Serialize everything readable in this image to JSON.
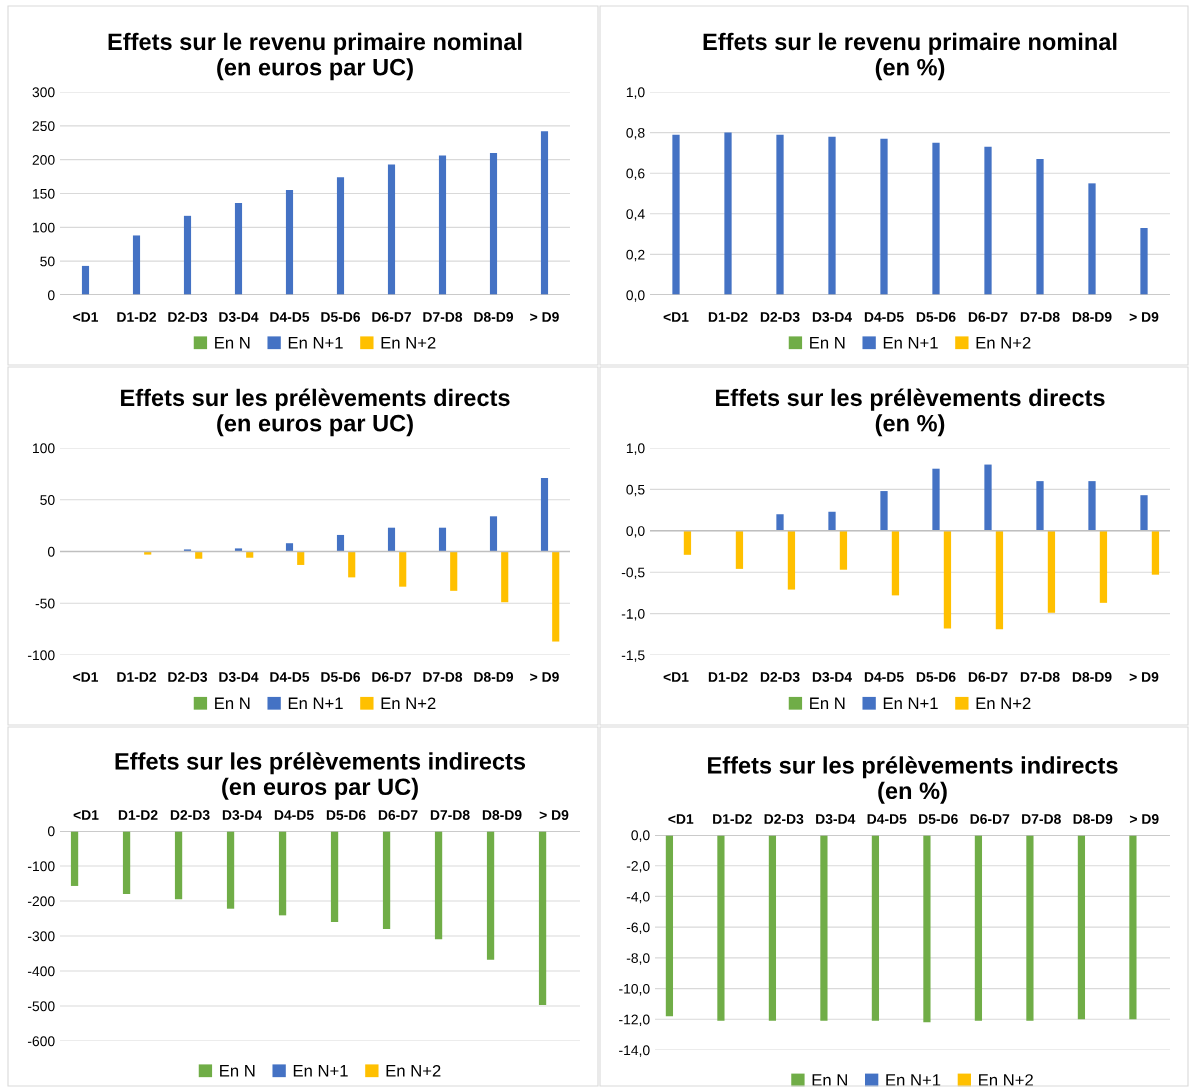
{
  "chart_data": [
    {
      "type": "bar",
      "title": "Effets sur le revenu primaire nominal\n(en euros par UC)",
      "categories": [
        "<D1",
        "D1-D2",
        "D2-D3",
        "D3-D4",
        "D4-D5",
        "D5-D6",
        "D6-D7",
        "D7-D8",
        "D8-D9",
        "> D9"
      ],
      "series": [
        {
          "name": "En N",
          "color": "#70ad47",
          "values": [
            null,
            null,
            null,
            null,
            null,
            null,
            null,
            null,
            null,
            null
          ]
        },
        {
          "name": "En N+1",
          "color": "#4472c4",
          "values": [
            43,
            88,
            117,
            136,
            155,
            174,
            193,
            206,
            210,
            242
          ]
        },
        {
          "name": "En N+2",
          "color": "#ffc000",
          "values": [
            null,
            null,
            null,
            null,
            null,
            null,
            null,
            null,
            null,
            null
          ]
        }
      ],
      "ylim": [
        0,
        300
      ],
      "yticks": [
        0,
        50,
        100,
        150,
        200,
        250,
        300
      ],
      "grid": "y",
      "legend": "bottom"
    },
    {
      "type": "bar",
      "title": "Effets sur le revenu primaire nominal\n(en %)",
      "categories": [
        "<D1",
        "D1-D2",
        "D2-D3",
        "D3-D4",
        "D4-D5",
        "D5-D6",
        "D6-D7",
        "D7-D8",
        "D8-D9",
        "> D9"
      ],
      "series": [
        {
          "name": "En N",
          "color": "#70ad47",
          "values": [
            null,
            null,
            null,
            null,
            null,
            null,
            null,
            null,
            null,
            null
          ]
        },
        {
          "name": "En N+1",
          "color": "#4472c4",
          "values": [
            0.79,
            0.8,
            0.79,
            0.78,
            0.77,
            0.75,
            0.73,
            0.67,
            0.55,
            0.33
          ]
        },
        {
          "name": "En N+2",
          "color": "#ffc000",
          "values": [
            null,
            null,
            null,
            null,
            null,
            null,
            null,
            null,
            null,
            null
          ]
        }
      ],
      "ylim": [
        0,
        1.0
      ],
      "yticks": [
        {
          "value": 0,
          "label": "0,0"
        },
        {
          "value": 0.2,
          "label": "0,2"
        },
        {
          "value": 0.4,
          "label": "0,4"
        },
        {
          "value": 0.6,
          "label": "0,6"
        },
        {
          "value": 0.8,
          "label": "0,8"
        },
        {
          "value": 1.0,
          "label": "1,0"
        }
      ],
      "grid": "y",
      "legend": "bottom"
    },
    {
      "type": "bar",
      "title": "Effets sur les prélèvements directs\n(en euros par UC)",
      "categories": [
        "<D1",
        "D1-D2",
        "D2-D3",
        "D3-D4",
        "D4-D5",
        "D5-D6",
        "D6-D7",
        "D7-D8",
        "D8-D9",
        "> D9"
      ],
      "series": [
        {
          "name": "En N",
          "color": "#70ad47",
          "values": [
            null,
            null,
            null,
            null,
            null,
            null,
            null,
            null,
            null,
            null
          ]
        },
        {
          "name": "En N+1",
          "color": "#4472c4",
          "values": [
            null,
            null,
            2,
            3,
            8,
            16,
            23,
            23,
            34,
            71
          ]
        },
        {
          "name": "En N+2",
          "color": "#ffc000",
          "values": [
            null,
            -3,
            -7,
            -6,
            -13,
            -25,
            -34,
            -38,
            -49,
            -87
          ]
        }
      ],
      "ylim": [
        -100,
        100
      ],
      "yticks": [
        -100,
        -50,
        0,
        50,
        100
      ],
      "grid": "y",
      "legend": "bottom"
    },
    {
      "type": "bar",
      "title": "Effets sur les prélèvements directs\n(en %)",
      "categories": [
        "<D1",
        "D1-D2",
        "D2-D3",
        "D3-D4",
        "D4-D5",
        "D5-D6",
        "D6-D7",
        "D7-D8",
        "D8-D9",
        "> D9"
      ],
      "series": [
        {
          "name": "En N",
          "color": "#70ad47",
          "values": [
            null,
            null,
            null,
            null,
            null,
            null,
            null,
            null,
            null,
            null
          ]
        },
        {
          "name": "En N+1",
          "color": "#4472c4",
          "values": [
            null,
            null,
            0.2,
            0.23,
            0.48,
            0.75,
            0.8,
            0.6,
            0.6,
            0.43
          ]
        },
        {
          "name": "En N+2",
          "color": "#ffc000",
          "values": [
            -0.29,
            -0.46,
            -0.71,
            -0.47,
            -0.78,
            -1.18,
            -1.19,
            -0.99,
            -0.87,
            -0.53
          ]
        }
      ],
      "ylim": [
        -1.5,
        1.0
      ],
      "yticks": [
        {
          "value": -1.5,
          "label": "-1,5"
        },
        {
          "value": -1.0,
          "label": "-1,0"
        },
        {
          "value": -0.5,
          "label": "-0,5"
        },
        {
          "value": 0,
          "label": "0,0"
        },
        {
          "value": 0.5,
          "label": "0,5"
        },
        {
          "value": 1.0,
          "label": "1,0"
        }
      ],
      "grid": "y",
      "legend": "bottom"
    },
    {
      "type": "bar",
      "title": "Effets sur les prélèvements indirects\n(en euros par UC)",
      "categories": [
        "<D1",
        "D1-D2",
        "D2-D3",
        "D3-D4",
        "D4-D5",
        "D5-D6",
        "D6-D7",
        "D7-D8",
        "D8-D9",
        "> D9"
      ],
      "series": [
        {
          "name": "En N",
          "color": "#70ad47",
          "values": [
            -157,
            -180,
            -195,
            -222,
            -241,
            -260,
            -280,
            -309,
            -368,
            -497
          ]
        },
        {
          "name": "En N+1",
          "color": "#4472c4",
          "values": [
            null,
            null,
            null,
            null,
            null,
            null,
            null,
            null,
            null,
            null
          ]
        },
        {
          "name": "En N+2",
          "color": "#ffc000",
          "values": [
            null,
            null,
            null,
            null,
            null,
            null,
            null,
            null,
            null,
            null
          ]
        }
      ],
      "ylim": [
        -600,
        0
      ],
      "yticks": [
        -600,
        -500,
        -400,
        -300,
        -200,
        -100,
        0
      ],
      "grid": "y",
      "legend": "bottom"
    },
    {
      "type": "bar",
      "title": "Effets sur les prélèvements indirects\n(en %)",
      "categories": [
        "<D1",
        "D1-D2",
        "D2-D3",
        "D3-D4",
        "D4-D5",
        "D5-D6",
        "D6-D7",
        "D7-D8",
        "D8-D9",
        "> D9"
      ],
      "series": [
        {
          "name": "En N",
          "color": "#70ad47",
          "values": [
            -11.8,
            -12.1,
            -12.1,
            -12.1,
            -12.1,
            -12.2,
            -12.1,
            -12.1,
            -12.0,
            -12.0
          ]
        },
        {
          "name": "En N+1",
          "color": "#4472c4",
          "values": [
            null,
            null,
            null,
            null,
            null,
            null,
            null,
            null,
            null,
            null
          ]
        },
        {
          "name": "En N+2",
          "color": "#ffc000",
          "values": [
            null,
            null,
            null,
            null,
            null,
            null,
            null,
            null,
            null,
            null
          ]
        }
      ],
      "ylim": [
        -14.0,
        0
      ],
      "yticks": [
        {
          "value": -14.0,
          "label": "-14,0"
        },
        {
          "value": -12.0,
          "label": "-12,0"
        },
        {
          "value": -10.0,
          "label": "-10,0"
        },
        {
          "value": -8.0,
          "label": "-8,0"
        },
        {
          "value": -6.0,
          "label": "-6,0"
        },
        {
          "value": -4.0,
          "label": "-4,0"
        },
        {
          "value": -2.0,
          "label": "-2,0"
        },
        {
          "value": 0,
          "label": "0,0"
        }
      ],
      "grid": "y",
      "legend": "bottom"
    }
  ]
}
